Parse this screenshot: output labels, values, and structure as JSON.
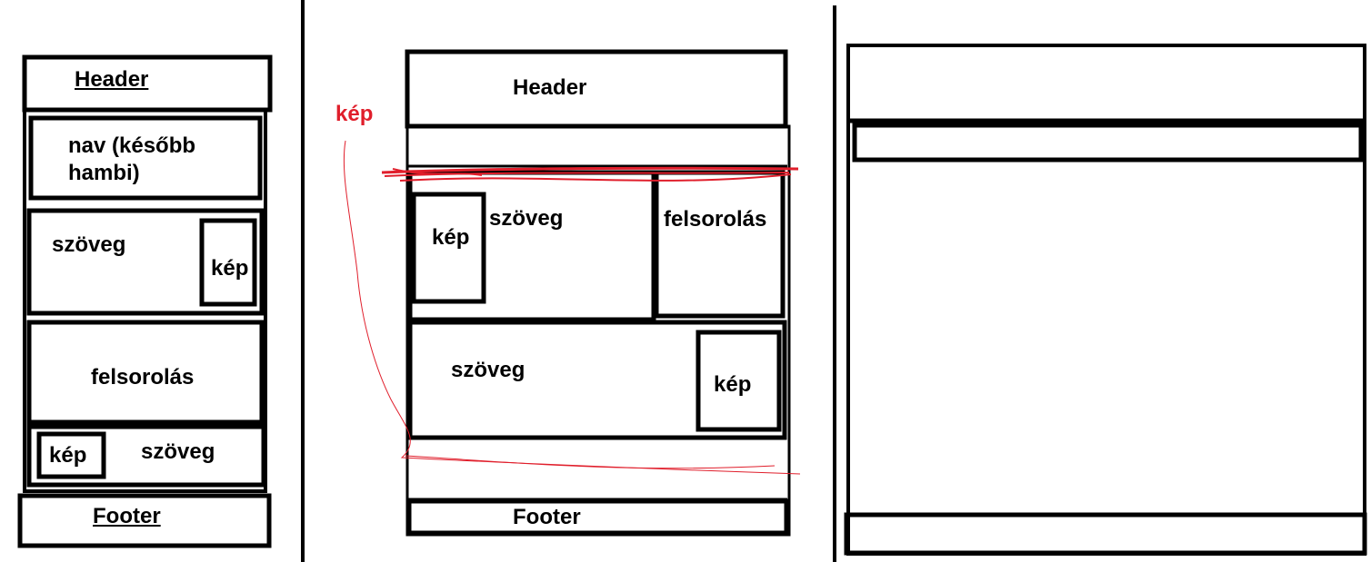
{
  "panel_mobile": {
    "header": "Header",
    "nav": "nav (később hambi)",
    "text_1": "szöveg",
    "image_1": "kép",
    "list": "felsorolás",
    "image_2": "kép",
    "text_2": "szöveg",
    "footer": "Footer"
  },
  "panel_tablet": {
    "annotation": "kép",
    "header": "Header",
    "image_1": "kép",
    "text_1": "szöveg",
    "list": "felsorolás",
    "text_2": "szöveg",
    "image_2": "kép",
    "footer": "Footer"
  },
  "colors": {
    "stroke": "#000000",
    "annotation": "#e01e2b"
  }
}
